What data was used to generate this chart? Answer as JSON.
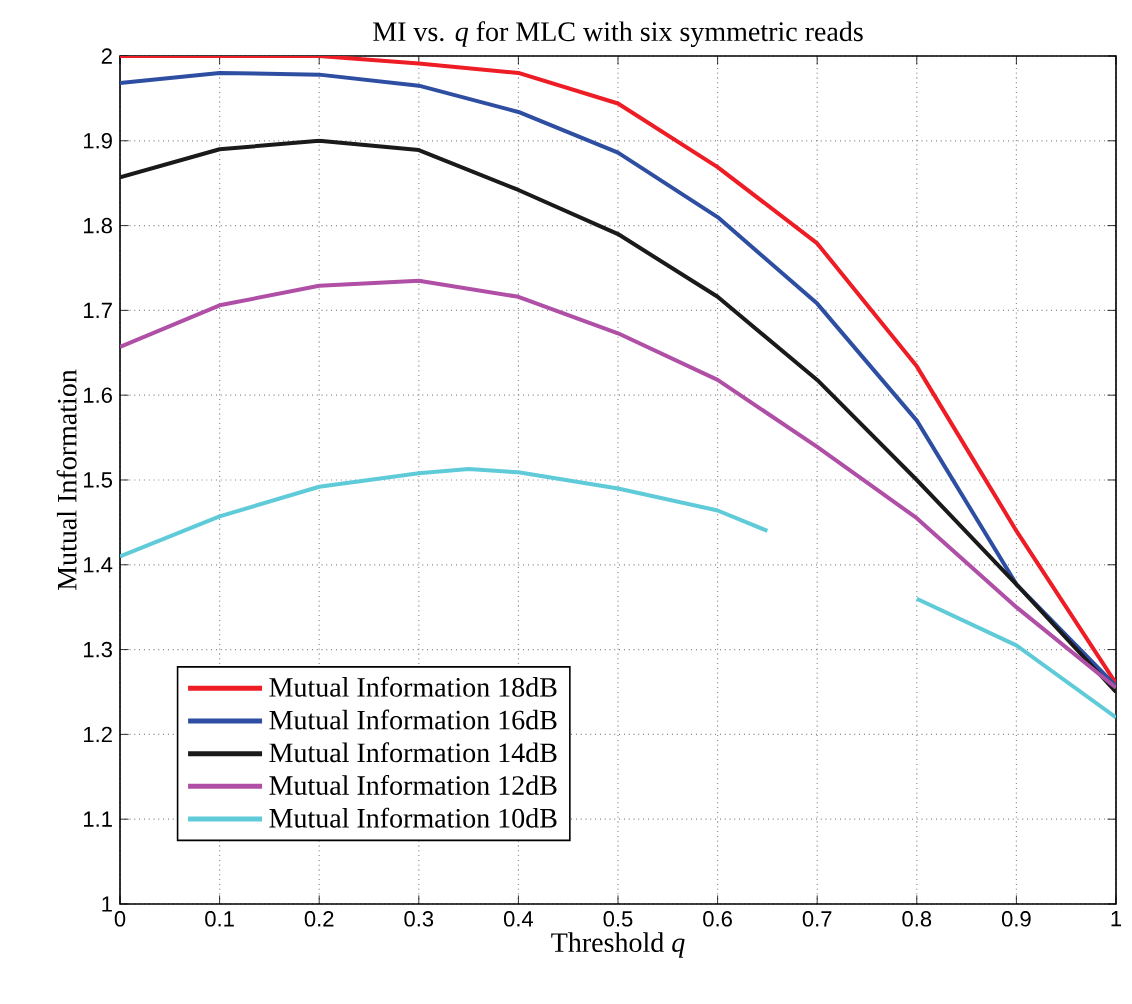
{
  "chart_data": {
    "type": "line",
    "title": "MI vs. *q* for MLC with six symmetric reads",
    "xlabel": "Threshold *q*",
    "ylabel": "Mutual Information",
    "xlim": [
      0,
      1
    ],
    "ylim": [
      1,
      2
    ],
    "xticks": [
      0,
      0.1,
      0.2,
      0.3,
      0.4,
      0.5,
      0.6,
      0.7,
      0.8,
      0.9,
      1
    ],
    "yticks": [
      1,
      1.1,
      1.2,
      1.3,
      1.4,
      1.5,
      1.6,
      1.7,
      1.8,
      1.9,
      2
    ],
    "grid": true,
    "legend": "bottom left",
    "line_style": "solid",
    "series": [
      {
        "name": "Mutual Information 18dB",
        "color": "#ee1c24",
        "x": [
          0,
          0.1,
          0.2,
          0.3,
          0.4,
          0.5,
          0.6,
          0.7,
          0.8,
          0.85,
          0.9,
          0.95,
          1
        ],
        "values": [
          2.0,
          2.0,
          2.0,
          1.991,
          1.98,
          1.944,
          1.869,
          1.779,
          1.634,
          1.537,
          1.44,
          1.35,
          1.26
        ]
      },
      {
        "name": "Mutual Information 16dB",
        "color": "#2e4ea2",
        "x": [
          0,
          0.1,
          0.2,
          0.3,
          0.4,
          0.5,
          0.6,
          0.7,
          0.8,
          0.9,
          1
        ],
        "values": [
          1.968,
          1.98,
          1.978,
          1.965,
          1.934,
          1.886,
          1.81,
          1.708,
          1.57,
          1.377,
          1.257
        ]
      },
      {
        "name": "Mutual Information 14dB",
        "color": "#1a1a1a",
        "x": [
          0,
          0.1,
          0.2,
          0.3,
          0.4,
          0.5,
          0.6,
          0.7,
          0.8,
          0.9,
          1
        ],
        "values": [
          1.857,
          1.89,
          1.9,
          1.889,
          1.842,
          1.79,
          1.716,
          1.618,
          1.5,
          1.377,
          1.25
        ]
      },
      {
        "name": "Mutual Information 12dB",
        "color": "#b04fa6",
        "x": [
          0,
          0.1,
          0.2,
          0.3,
          0.4,
          0.5,
          0.6,
          0.7,
          0.8,
          0.9,
          1
        ],
        "values": [
          1.657,
          1.706,
          1.729,
          1.735,
          1.716,
          1.673,
          1.618,
          1.539,
          1.455,
          1.35,
          1.255
        ]
      },
      {
        "name": "Mutual Information 10dB",
        "color": "#5fcbd9",
        "x": [
          0,
          0.1,
          0.2,
          0.3,
          0.35,
          0.4,
          0.5,
          0.6,
          0.65,
          0.7,
          0.8,
          0.9,
          1
        ],
        "values": [
          1.41,
          1.457,
          1.492,
          1.508,
          1.513,
          1.509,
          1.49,
          1.464,
          1.44,
          null,
          1.36,
          1.305,
          1.22
        ]
      }
    ]
  }
}
